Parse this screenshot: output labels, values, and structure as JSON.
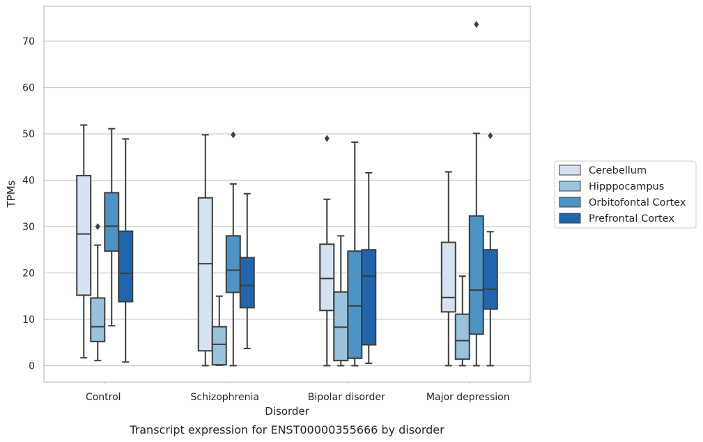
{
  "chart_data": {
    "type": "box",
    "title": "",
    "caption": "Transcript expression for ENST00000355666 by disorder",
    "xlabel": "Disorder",
    "ylabel": "TPMs",
    "ylim": [
      -3.5,
      77
    ],
    "yticks": [
      0,
      10,
      20,
      30,
      40,
      50,
      60,
      70
    ],
    "grid": "horizontal",
    "legend_position": "right",
    "categories": [
      "Control",
      "Schizophrenia",
      "Bipolar disorder",
      "Major depression"
    ],
    "series": [
      {
        "name": "Cerebellum",
        "color": "#d4e2f1",
        "boxes": [
          {
            "whisker_low": 1.7,
            "q1": 15.2,
            "median": 28.4,
            "q3": 41.0,
            "whisker_high": 51.9,
            "outliers": []
          },
          {
            "whisker_low": 0.0,
            "q1": 3.2,
            "median": 22.0,
            "q3": 36.2,
            "whisker_high": 49.8,
            "outliers": []
          },
          {
            "whisker_low": 0.0,
            "q1": 11.9,
            "median": 18.8,
            "q3": 26.2,
            "whisker_high": 35.9,
            "outliers": [
              49.0
            ]
          },
          {
            "whisker_low": 0.0,
            "q1": 11.6,
            "median": 14.7,
            "q3": 26.6,
            "whisker_high": 41.8,
            "outliers": []
          }
        ]
      },
      {
        "name": "Hipppocampus",
        "color": "#9ac2dc",
        "boxes": [
          {
            "whisker_low": 1.1,
            "q1": 5.2,
            "median": 8.4,
            "q3": 14.6,
            "whisker_high": 26.0,
            "outliers": [
              30.0
            ]
          },
          {
            "whisker_low": 0.1,
            "q1": 0.2,
            "median": 4.6,
            "q3": 8.4,
            "whisker_high": 15.0,
            "outliers": []
          },
          {
            "whisker_low": 0.0,
            "q1": 1.1,
            "median": 8.3,
            "q3": 15.9,
            "whisker_high": 28.0,
            "outliers": []
          },
          {
            "whisker_low": 0.0,
            "q1": 1.4,
            "median": 5.4,
            "q3": 11.1,
            "whisker_high": 19.3,
            "outliers": []
          }
        ]
      },
      {
        "name": "Orbitofontal Cortex",
        "color": "#4d93c4",
        "boxes": [
          {
            "whisker_low": 8.6,
            "q1": 24.7,
            "median": 30.1,
            "q3": 37.3,
            "whisker_high": 51.1,
            "outliers": []
          },
          {
            "whisker_low": 0.0,
            "q1": 15.8,
            "median": 20.6,
            "q3": 28.0,
            "whisker_high": 39.2,
            "outliers": [
              49.8
            ]
          },
          {
            "whisker_low": 0.0,
            "q1": 1.6,
            "median": 12.9,
            "q3": 24.7,
            "whisker_high": 48.2,
            "outliers": []
          },
          {
            "whisker_low": 0.0,
            "q1": 6.8,
            "median": 16.3,
            "q3": 32.3,
            "whisker_high": 50.1,
            "outliers": [
              73.6
            ]
          }
        ]
      },
      {
        "name": "Prefrontal Cortex",
        "color": "#2166ac",
        "boxes": [
          {
            "whisker_low": 0.8,
            "q1": 13.8,
            "median": 19.9,
            "q3": 29.0,
            "whisker_high": 48.9,
            "outliers": []
          },
          {
            "whisker_low": 3.7,
            "q1": 12.5,
            "median": 17.3,
            "q3": 23.3,
            "whisker_high": 37.1,
            "outliers": []
          },
          {
            "whisker_low": 0.5,
            "q1": 4.5,
            "median": 19.3,
            "q3": 25.0,
            "whisker_high": 41.6,
            "outliers": []
          },
          {
            "whisker_low": 0.0,
            "q1": 12.2,
            "median": 16.5,
            "q3": 25.0,
            "whisker_high": 28.9,
            "outliers": [
              49.6
            ]
          }
        ]
      }
    ]
  }
}
